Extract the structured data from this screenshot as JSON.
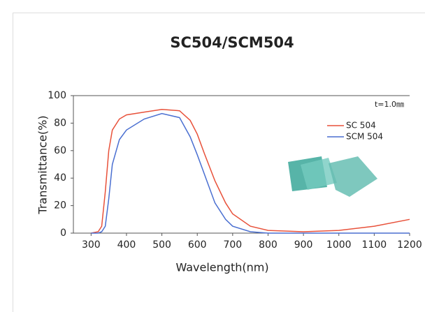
{
  "chart_data": {
    "type": "line",
    "title": "SC504/SCM504",
    "x_label": "Wavelength(nm)",
    "y_label": "Transmittance(%)",
    "annotation": "t=1.0㎜",
    "x": [
      300,
      320,
      330,
      340,
      350,
      360,
      380,
      400,
      450,
      500,
      550,
      580,
      600,
      620,
      650,
      680,
      700,
      750,
      800,
      900,
      1000,
      1100,
      1200
    ],
    "series": [
      {
        "name": "SC 504",
        "color": "#e8513a",
        "values": [
          0,
          1,
          5,
          30,
          60,
          75,
          83,
          86,
          88,
          90,
          89,
          82,
          72,
          58,
          38,
          22,
          14,
          5,
          2,
          1,
          2,
          5,
          10
        ]
      },
      {
        "name": "SCM 504",
        "color": "#4a6fd1",
        "values": [
          0,
          0,
          1,
          5,
          25,
          50,
          68,
          75,
          83,
          87,
          84,
          70,
          57,
          43,
          22,
          10,
          5,
          1,
          0,
          0,
          0,
          0,
          0
        ]
      }
    ],
    "xlim": [
      250,
      1200
    ],
    "xticks": [
      300,
      400,
      500,
      600,
      700,
      800,
      900,
      1000,
      1100,
      1200
    ],
    "ylim": [
      0,
      100
    ],
    "yticks": [
      0,
      20,
      40,
      60,
      80,
      100
    ]
  }
}
